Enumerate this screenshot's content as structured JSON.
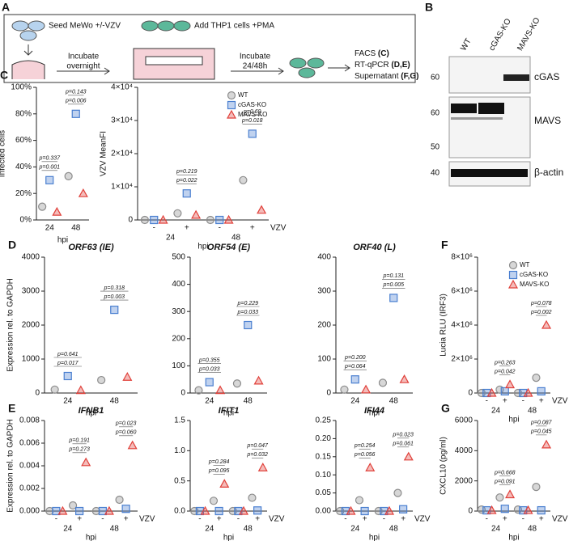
{
  "schematic": {
    "panel": "A",
    "steps": [
      "Seed MeWo +/-VZV",
      "Add THP1 cells +PMA"
    ],
    "incubate_1": [
      "Incubate",
      "overnight"
    ],
    "incubate_2": [
      "Incubate",
      "24/48h"
    ],
    "readouts": [
      {
        "method": "FACS",
        "panels": "(C)"
      },
      {
        "method": "RT-qPCR",
        "panels": "(D,E)"
      },
      {
        "method": "Supernatant",
        "panels": "(F,G)"
      }
    ]
  },
  "blot": {
    "panel": "B",
    "lanes": [
      "WT",
      "cGAS-KO",
      "MAVS-KO"
    ],
    "proteins": [
      "cGAS",
      "MAVS",
      "β-actin"
    ],
    "markers": [
      "60",
      "60",
      "50",
      "40"
    ]
  },
  "chart_data": [
    {
      "type": "dot",
      "panel": "C",
      "ylabel": "Infected cells",
      "xlabel": "hpi",
      "categories": [
        "24",
        "48"
      ],
      "ylim": [
        0,
        100
      ],
      "yticks": [
        {
          "value": 0,
          "label": "0%"
        },
        {
          "value": 20,
          "label": "20%"
        },
        {
          "value": 40,
          "label": "40%"
        },
        {
          "value": 60,
          "label": "60%"
        },
        {
          "value": 80,
          "label": "80%"
        },
        {
          "value": 100,
          "label": "100%"
        }
      ],
      "series": [
        {
          "color": "#8c8c8c",
          "marker": "circle",
          "values": [
            10,
            33
          ]
        },
        {
          "color": "#4a7fd0",
          "marker": "square",
          "values": [
            30,
            80
          ]
        },
        {
          "color": "#e0403a",
          "marker": "triangle",
          "values": [
            6,
            20
          ]
        }
      ],
      "p_values": [
        [
          "p=0.337",
          "p=0.001"
        ],
        [
          "p=0.143",
          "p=0.006"
        ]
      ]
    },
    {
      "type": "dot",
      "ylabel": "VZV MeanFI",
      "xlabel": "hpi",
      "treatment_label": "VZV",
      "categories": [
        "-",
        "+",
        "-",
        "+"
      ],
      "groups": [
        "24",
        "48"
      ],
      "ylim": [
        0,
        40000
      ],
      "yticks": [
        0,
        {
          "value": 10000,
          "label": "1×10⁴"
        },
        {
          "value": 20000,
          "label": "2×10⁴"
        },
        {
          "value": 30000,
          "label": "3×10⁴"
        },
        {
          "value": 40000,
          "label": "4×10⁴"
        }
      ],
      "legend": "upper right",
      "series": [
        {
          "name": "WT",
          "color": "#8c8c8c",
          "marker": "circle",
          "values": [
            0,
            2000,
            0,
            12000
          ]
        },
        {
          "name": "cGAS-KO",
          "color": "#4a7fd0",
          "marker": "square",
          "values": [
            0,
            8000,
            0,
            26000
          ]
        },
        {
          "name": "MAVS-KO",
          "color": "#e0403a",
          "marker": "triangle",
          "values": [
            0,
            1500,
            0,
            3000
          ]
        }
      ],
      "p_values": [
        [
          "p=0.219",
          "p=0.022"
        ],
        [
          "p=0.69",
          "p=0.018"
        ]
      ]
    },
    {
      "type": "dot",
      "panel": "D",
      "title": "ORF63 (IE)",
      "ylabel": "Expression rel. to GAPDH",
      "xlabel": "hpi",
      "categories": [
        "24",
        "48"
      ],
      "ylim": [
        0,
        4000
      ],
      "yticks": [
        0,
        1000,
        2000,
        3000,
        4000
      ],
      "series": [
        {
          "color": "#8c8c8c",
          "marker": "circle",
          "values": [
            100,
            380
          ]
        },
        {
          "color": "#4a7fd0",
          "marker": "square",
          "values": [
            500,
            2450
          ]
        },
        {
          "color": "#e0403a",
          "marker": "triangle",
          "values": [
            80,
            470
          ]
        }
      ],
      "p_values": [
        [
          "p=0.641",
          "p=0.017"
        ],
        [
          "p=0.318",
          "p=0.003"
        ]
      ]
    },
    {
      "type": "dot",
      "title": "ORF54 (E)",
      "xlabel": "hpi",
      "categories": [
        "24",
        "48"
      ],
      "ylim": [
        0,
        500
      ],
      "yticks": [
        0,
        100,
        200,
        300,
        400,
        500
      ],
      "series": [
        {
          "color": "#8c8c8c",
          "marker": "circle",
          "values": [
            10,
            35
          ]
        },
        {
          "color": "#4a7fd0",
          "marker": "square",
          "values": [
            40,
            250
          ]
        },
        {
          "color": "#e0403a",
          "marker": "triangle",
          "values": [
            10,
            45
          ]
        }
      ],
      "p_values": [
        [
          "p=0.355",
          "p=0.033"
        ],
        [
          "p=0.229",
          "p=0.033"
        ]
      ]
    },
    {
      "type": "dot",
      "title": "ORF40 (L)",
      "xlabel": "hpi",
      "categories": [
        "24",
        "48"
      ],
      "ylim": [
        0,
        400
      ],
      "yticks": [
        0,
        100,
        200,
        300,
        400
      ],
      "series": [
        {
          "color": "#8c8c8c",
          "marker": "circle",
          "values": [
            10,
            30
          ]
        },
        {
          "color": "#4a7fd0",
          "marker": "square",
          "values": [
            40,
            280
          ]
        },
        {
          "color": "#e0403a",
          "marker": "triangle",
          "values": [
            10,
            40
          ]
        }
      ],
      "p_values": [
        [
          "p=0.200",
          "p=0.064"
        ],
        [
          "p=0.131",
          "p=0.005"
        ]
      ]
    },
    {
      "type": "dot",
      "panel": "F",
      "ylabel": "Lucia RLU (IRF3)",
      "xlabel": "hpi",
      "treatment_label": "VZV",
      "categories": [
        "-",
        "+",
        "-",
        "+"
      ],
      "groups": [
        "24",
        "48"
      ],
      "ylim": [
        0,
        8000000
      ],
      "yticks": [
        0,
        {
          "value": 2000000,
          "label": "2×10⁶"
        },
        {
          "value": 4000000,
          "label": "4×10⁶"
        },
        {
          "value": 6000000,
          "label": "6×10⁶"
        },
        {
          "value": 8000000,
          "label": "8×10⁶"
        }
      ],
      "legend": "upper right",
      "series": [
        {
          "name": "WT",
          "color": "#8c8c8c",
          "marker": "circle",
          "values": [
            0,
            200000,
            0,
            900000
          ]
        },
        {
          "name": "cGAS-KO",
          "color": "#4a7fd0",
          "marker": "square",
          "values": [
            0,
            100000,
            0,
            100000
          ]
        },
        {
          "name": "MAVS-KO",
          "color": "#e0403a",
          "marker": "triangle",
          "values": [
            0,
            500000,
            0,
            4000000
          ]
        }
      ],
      "p_values": [
        [
          "p=0.263",
          "p=0.042"
        ],
        [
          "p=0.078",
          "p=0.002"
        ]
      ]
    },
    {
      "type": "dot",
      "panel": "E",
      "title": "IFNB1",
      "ylabel": "Expression rel. to GAPDH",
      "xlabel": "hpi",
      "treatment_label": "VZV",
      "categories": [
        "-",
        "+",
        "-",
        "+"
      ],
      "groups": [
        "24",
        "48"
      ],
      "ylim": [
        0,
        0.008
      ],
      "yticks": [
        {
          "value": 0,
          "label": "0.000"
        },
        0.002,
        0.004,
        0.006,
        0.008
      ],
      "series": [
        {
          "color": "#8c8c8c",
          "marker": "circle",
          "values": [
            0,
            0.0005,
            0,
            0.001
          ]
        },
        {
          "color": "#4a7fd0",
          "marker": "square",
          "values": [
            0,
            0,
            0,
            0.0002
          ]
        },
        {
          "color": "#e0403a",
          "marker": "triangle",
          "values": [
            0,
            0.0043,
            0,
            0.0058
          ]
        }
      ],
      "p_values": [
        [
          "p=0.191",
          "p=0.273"
        ],
        [
          "p=0.023",
          "p=0.060"
        ]
      ]
    },
    {
      "type": "dot",
      "title": "IFIT1",
      "xlabel": "hpi",
      "treatment_label": "VZV",
      "categories": [
        "-",
        "+",
        "-",
        "+"
      ],
      "groups": [
        "24",
        "48"
      ],
      "ylim": [
        0,
        1.5
      ],
      "yticks": [
        {
          "value": 0,
          "label": "0.0"
        },
        0.5,
        {
          "value": 1,
          "label": "1.0"
        },
        1.5
      ],
      "series": [
        {
          "color": "#8c8c8c",
          "marker": "circle",
          "values": [
            0,
            0.17,
            0,
            0.22
          ]
        },
        {
          "color": "#4a7fd0",
          "marker": "square",
          "values": [
            0,
            0,
            0,
            0.01
          ]
        },
        {
          "color": "#e0403a",
          "marker": "triangle",
          "values": [
            0,
            0.45,
            0,
            0.72
          ]
        }
      ],
      "p_values": [
        [
          "p=0.284",
          "p=0.095"
        ],
        [
          "p=0.047",
          "p=0.032"
        ]
      ]
    },
    {
      "type": "dot",
      "title": "IFI44",
      "xlabel": "hpi",
      "treatment_label": "VZV",
      "categories": [
        "-",
        "+",
        "-",
        "+"
      ],
      "groups": [
        "24",
        "48"
      ],
      "ylim": [
        0,
        0.25
      ],
      "yticks": [
        {
          "value": 0,
          "label": "0.00"
        },
        {
          "value": 0.05,
          "label": "0.05"
        },
        {
          "value": 0.1,
          "label": "0.10"
        },
        {
          "value": 0.15,
          "label": "0.15"
        },
        {
          "value": 0.2,
          "label": "0.20"
        },
        {
          "value": 0.25,
          "label": "0.25"
        }
      ],
      "series": [
        {
          "color": "#8c8c8c",
          "marker": "circle",
          "values": [
            0,
            0.03,
            0,
            0.05
          ]
        },
        {
          "color": "#4a7fd0",
          "marker": "square",
          "values": [
            0,
            0,
            0,
            0.005
          ]
        },
        {
          "color": "#e0403a",
          "marker": "triangle",
          "values": [
            0,
            0.12,
            0,
            0.15
          ]
        }
      ],
      "p_values": [
        [
          "p=0.254",
          "p=0.056"
        ],
        [
          "p=0.023",
          "p=0.061"
        ]
      ]
    },
    {
      "type": "dot",
      "panel": "G",
      "ylabel": "CXCL10 (pg/ml)",
      "xlabel": "hpi",
      "treatment_label": "VZV",
      "categories": [
        "-",
        "+",
        "-",
        "+"
      ],
      "groups": [
        "24",
        "48"
      ],
      "ylim": [
        0,
        6000
      ],
      "yticks": [
        0,
        2000,
        4000,
        6000
      ],
      "series": [
        {
          "color": "#8c8c8c",
          "marker": "circle",
          "values": [
            100,
            900,
            100,
            1600
          ]
        },
        {
          "color": "#4a7fd0",
          "marker": "square",
          "values": [
            50,
            150,
            50,
            50
          ]
        },
        {
          "color": "#e0403a",
          "marker": "triangle",
          "values": [
            50,
            1100,
            50,
            4400
          ]
        }
      ],
      "p_values": [
        [
          "p=0.668",
          "p=0.091"
        ],
        [
          "p=0.087",
          "p=0.045"
        ]
      ]
    }
  ]
}
